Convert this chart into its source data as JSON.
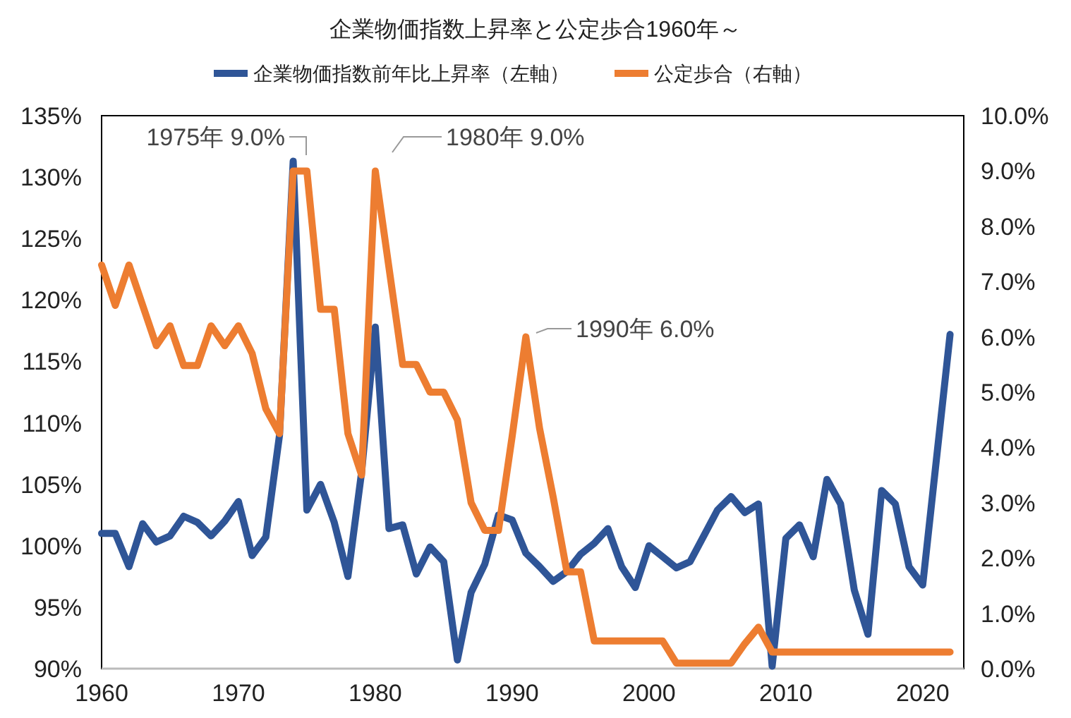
{
  "chart_data": {
    "type": "line",
    "title": "企業物価指数上昇率と公定歩合1960年～",
    "x": [
      1960,
      1961,
      1962,
      1963,
      1964,
      1965,
      1966,
      1967,
      1968,
      1969,
      1970,
      1971,
      1972,
      1973,
      1974,
      1975,
      1976,
      1977,
      1978,
      1979,
      1980,
      1981,
      1982,
      1983,
      1984,
      1985,
      1986,
      1987,
      1988,
      1989,
      1990,
      1991,
      1992,
      1993,
      1994,
      1995,
      1996,
      1997,
      1998,
      1999,
      2000,
      2001,
      2002,
      2003,
      2004,
      2005,
      2006,
      2007,
      2008,
      2009,
      2010,
      2011,
      2012,
      2013,
      2014,
      2015,
      2016,
      2017,
      2018,
      2019,
      2020,
      2021,
      2022
    ],
    "series": [
      {
        "name": "企業物価指数前年比上昇率（左軸）",
        "color": "#2f5597",
        "axis": "y",
        "values": [
          101.0,
          101.0,
          98.3,
          101.8,
          100.3,
          100.8,
          102.4,
          101.9,
          100.8,
          102.0,
          103.6,
          99.2,
          100.7,
          109.0,
          131.3,
          102.9,
          105.0,
          101.9,
          97.5,
          106.0,
          117.8,
          101.4,
          101.7,
          97.7,
          99.9,
          98.7,
          90.7,
          96.2,
          98.5,
          102.5,
          102.1,
          99.4,
          98.3,
          97.1,
          97.9,
          99.3,
          100.2,
          101.4,
          98.3,
          96.6,
          100.0,
          99.1,
          98.2,
          98.7,
          100.8,
          102.9,
          104.0,
          102.7,
          103.4,
          90.2,
          100.6,
          101.7,
          99.1,
          105.4,
          103.4,
          96.4,
          92.8,
          104.5,
          103.4,
          98.3,
          96.8,
          107.0,
          117.2
        ]
      },
      {
        "name": "公定歩合（右軸）",
        "color": "#ed7d31",
        "axis": "y2",
        "values": [
          7.3,
          6.57,
          7.3,
          6.57,
          5.84,
          6.2,
          5.48,
          5.48,
          6.2,
          5.84,
          6.2,
          5.7,
          4.7,
          4.25,
          9.0,
          9.0,
          6.5,
          6.5,
          4.25,
          3.5,
          9.0,
          7.25,
          5.5,
          5.5,
          5.0,
          5.0,
          4.5,
          3.0,
          2.5,
          2.5,
          4.2,
          6.0,
          4.35,
          3.1,
          1.75,
          1.75,
          0.5,
          0.5,
          0.5,
          0.5,
          0.5,
          0.5,
          0.1,
          0.1,
          0.1,
          0.1,
          0.1,
          0.45,
          0.75,
          0.3,
          0.3,
          0.3,
          0.3,
          0.3,
          0.3,
          0.3,
          0.3,
          0.3,
          0.3,
          0.3,
          0.3,
          0.3,
          0.3
        ]
      }
    ],
    "xlim": [
      1960,
      2023
    ],
    "xticks": [
      1960,
      1970,
      1980,
      1990,
      2000,
      2010,
      2020
    ],
    "ylim": [
      90,
      135
    ],
    "yticks": [
      {
        "value": 90,
        "label": "90%"
      },
      {
        "value": 95,
        "label": "95%"
      },
      {
        "value": 100,
        "label": "100%"
      },
      {
        "value": 105,
        "label": "105%"
      },
      {
        "value": 110,
        "label": "110%"
      },
      {
        "value": 115,
        "label": "115%"
      },
      {
        "value": 120,
        "label": "120%"
      },
      {
        "value": 125,
        "label": "125%"
      },
      {
        "value": 130,
        "label": "130%"
      },
      {
        "value": 135,
        "label": "135%"
      }
    ],
    "y2lim": [
      0,
      10
    ],
    "y2ticks": [
      {
        "value": 0,
        "label": "0.0%"
      },
      {
        "value": 1,
        "label": "1.0%"
      },
      {
        "value": 2,
        "label": "2.0%"
      },
      {
        "value": 3,
        "label": "3.0%"
      },
      {
        "value": 4,
        "label": "4.0%"
      },
      {
        "value": 5,
        "label": "5.0%"
      },
      {
        "value": 6,
        "label": "6.0%"
      },
      {
        "value": 7,
        "label": "7.0%"
      },
      {
        "value": 8,
        "label": "8.0%"
      },
      {
        "value": 9,
        "label": "9.0%"
      },
      {
        "value": 10,
        "label": "10.0%"
      }
    ],
    "annotations": [
      "1975年  9.0%",
      "1980年  9.0%",
      "1990年  6.0%"
    ],
    "legend": "top",
    "grid": false,
    "marker": "none",
    "line_style": "solid"
  }
}
